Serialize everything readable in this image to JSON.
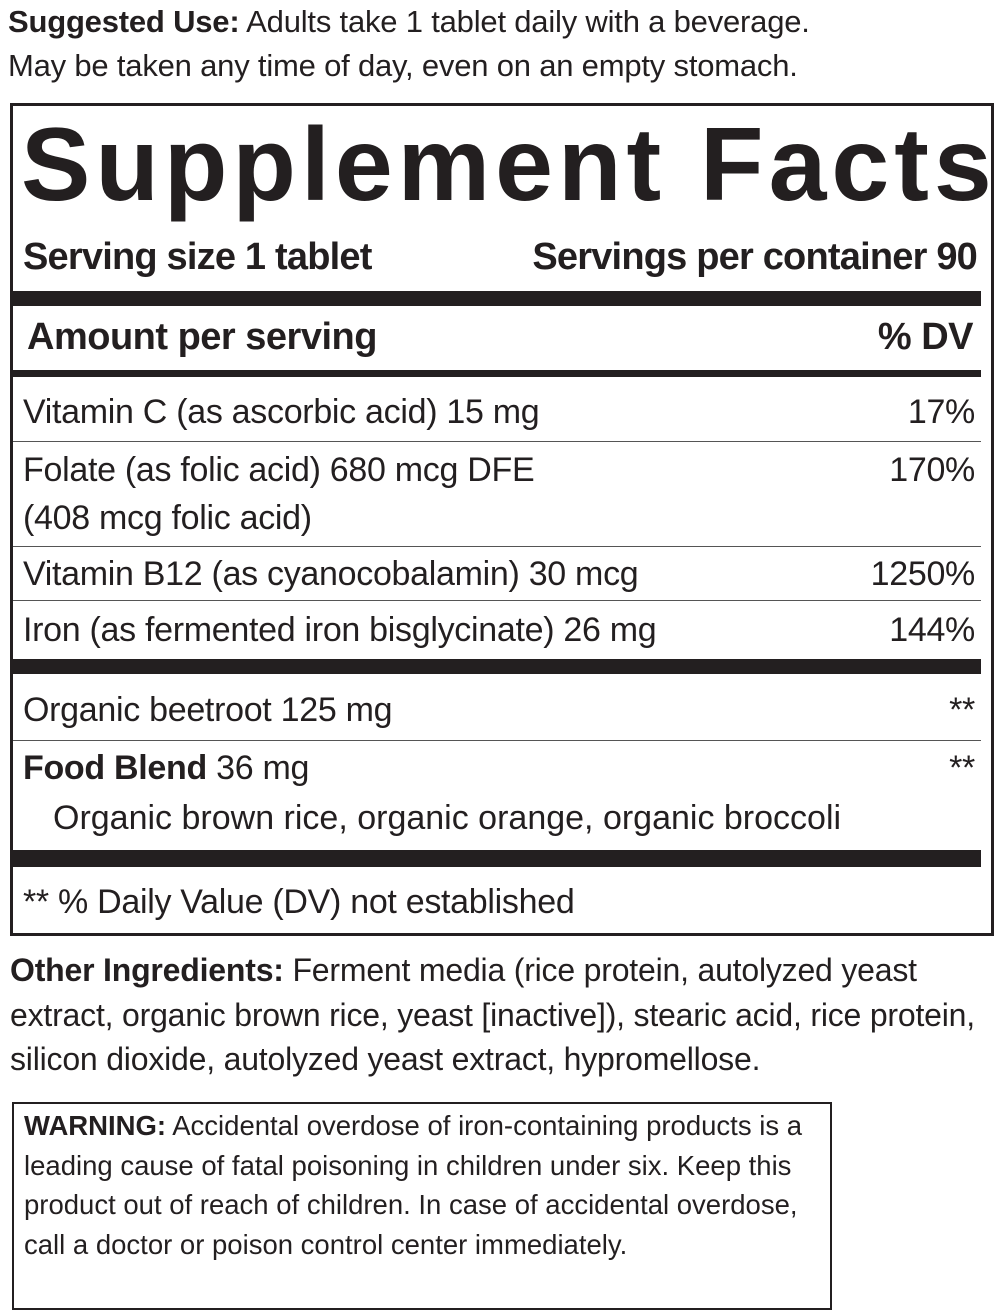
{
  "suggested_use": {
    "label": "Suggested Use:",
    "text": " Adults take 1 tablet daily with a beverage.",
    "line2": "May be taken any time of day, even on an empty stomach."
  },
  "facts": {
    "title": "Supplement Facts",
    "serving_size": "Serving size 1 tablet",
    "servings_per_container": "Servings per container 90",
    "amount_header": "Amount per serving",
    "dv_header": "% DV",
    "rows": [
      {
        "name": "Vitamin C (as ascorbic acid) 15 mg",
        "dv": "17%"
      },
      {
        "name": "Folate (as folic acid) 680 mcg DFE",
        "name2": "(408 mcg folic acid)",
        "dv": "170%"
      },
      {
        "name": "Vitamin B12 (as cyanocobalamin) 30 mcg",
        "dv": "1250%"
      },
      {
        "name": "Iron (as fermented iron bisglycinate) 26 mg",
        "dv": "144%"
      },
      {
        "name": "Organic beetroot 125 mg",
        "dv": "**"
      },
      {
        "name_bold": "Food Blend",
        "name": " 36 mg",
        "sub": "Organic brown rice, organic orange, organic broccoli",
        "dv": "**"
      }
    ],
    "footnote": "** % Daily Value (DV) not established"
  },
  "other_ingredients": {
    "label": "Other Ingredients:",
    "text": " Ferment media (rice protein, autolyzed yeast extract, organic brown rice, yeast [inactive]), stearic acid, rice protein, silicon dioxide, autolyzed yeast extract, hypromellose."
  },
  "warning": {
    "label": "WARNING:",
    "text": " Accidental overdose of iron-containing products is a leading cause of fatal poisoning in children under six. Keep this product out of reach of children. In case of accidental overdose, call a doctor or poison control center immediately."
  }
}
